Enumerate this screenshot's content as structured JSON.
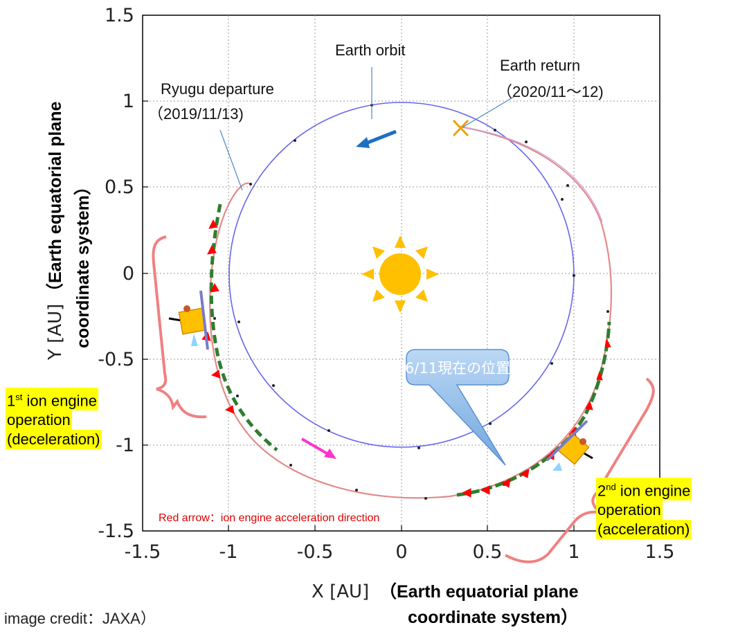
{
  "axes": {
    "x_ticks": [
      "-1.5",
      "-1",
      "-0.5",
      "0",
      "0.5",
      "1",
      "1.5"
    ],
    "y_ticks": [
      "1.5",
      "1",
      "0.5",
      "0",
      "-0.5",
      "-1",
      "-1.5"
    ],
    "x_label_plain": "X [AU]",
    "x_label_bold_1": "（Earth equatorial plane",
    "x_label_bold_2": "coordinate system）",
    "y_label_plain": "Y [AU]",
    "y_label_bold_1": "（Earth equatorial plane",
    "y_label_bold_2": "coordinate system）"
  },
  "annotations": {
    "earth_orbit": "Earth orbit",
    "earth_return": "Earth return",
    "earth_return_date": "（2020/11〜12)",
    "ryugu_departure": "Ryugu departure",
    "ryugu_departure_date": "（2019/11/13)",
    "current_position": "6/11現在の位置",
    "red_arrow_note": "Red arrow：ion engine acceleration direction",
    "first_op_1": "1",
    "first_op_sup": "st",
    "first_op_2": " ion engine",
    "first_op_3": "operation",
    "first_op_4": "(deceleration)",
    "second_op_1": "2",
    "second_op_sup": "nd",
    "second_op_2": " ion engine",
    "second_op_3": "operation",
    "second_op_4": "(acceleration)",
    "credit": "image credit：JAXA）"
  },
  "colors": {
    "earth_orbit": "#6666ee",
    "spacecraft_orbit": "#e38a8a",
    "thrust_arc": "#2f7d2f",
    "thrust_arrow": "#ff0000",
    "sun": "#ffc000",
    "highlight": "#ffff00",
    "bracket": "#f08080",
    "callout": "#9cc3ea"
  }
}
